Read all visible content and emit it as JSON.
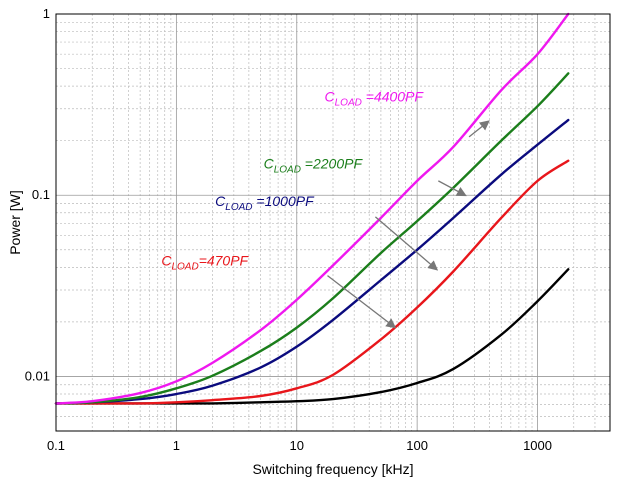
{
  "chart_data": {
    "type": "line",
    "title": "",
    "xlabel": "Switching frequency [kHz]",
    "ylabel": "Power [W]",
    "x_scale": "log",
    "y_scale": "log",
    "xlim": [
      0.1,
      4000
    ],
    "ylim": [
      0.005,
      1
    ],
    "grid": true,
    "x_ticks": [
      "0.1",
      "1",
      "10",
      "100",
      "1000"
    ],
    "y_ticks": [
      "0.01",
      "0.1",
      "1"
    ],
    "x": [
      0.1,
      0.2,
      0.5,
      1,
      2,
      5,
      10,
      20,
      50,
      100,
      200,
      500,
      1000,
      1800
    ],
    "series": [
      {
        "name": "",
        "color": "#000000",
        "values": [
          0.0071,
          0.0071,
          0.0071,
          0.0071,
          0.0071,
          0.0072,
          0.0073,
          0.0075,
          0.0082,
          0.0092,
          0.011,
          0.017,
          0.026,
          0.039
        ]
      },
      {
        "name": "C_LOAD=470PF",
        "label_main": "C",
        "label_sub": "LOAD",
        "label_tail": "=470PF",
        "color": "#e8161b",
        "values": [
          0.0071,
          0.0071,
          0.0071,
          0.0072,
          0.0074,
          0.0078,
          0.0086,
          0.0102,
          0.016,
          0.024,
          0.038,
          0.075,
          0.12,
          0.155
        ]
      },
      {
        "name": "C_LOAD =1000PF",
        "label_main": "C",
        "label_sub": "LOAD",
        "label_tail": " =1000PF",
        "color": "#0b0b7e",
        "values": [
          0.0071,
          0.0072,
          0.0075,
          0.008,
          0.0089,
          0.0112,
          0.0146,
          0.0205,
          0.034,
          0.05,
          0.075,
          0.13,
          0.19,
          0.26
        ]
      },
      {
        "name": "C_LOAD =2200PF",
        "label_main": "C",
        "label_sub": "LOAD",
        "label_tail": " =2200PF",
        "color": "#1b7e1b",
        "values": [
          0.0071,
          0.0072,
          0.0077,
          0.0086,
          0.0101,
          0.0138,
          0.0186,
          0.027,
          0.048,
          0.072,
          0.11,
          0.2,
          0.31,
          0.47
        ]
      },
      {
        "name": "C_LOAD =4400PF",
        "label_main": "C",
        "label_sub": "LOAD",
        "label_tail": " =4400PF",
        "color": "#ef18ef",
        "values": [
          0.0071,
          0.0073,
          0.0081,
          0.0094,
          0.0119,
          0.018,
          0.0265,
          0.041,
          0.075,
          0.12,
          0.185,
          0.38,
          0.6,
          1.0
        ]
      }
    ],
    "annotations": [
      {
        "series": 4,
        "label_at": [
          17,
          0.33
        ],
        "arrow_from": [
          270,
          0.21
        ],
        "arrow_to": [
          390,
          0.255
        ]
      },
      {
        "series": 3,
        "label_at": [
          5.3,
          0.14
        ],
        "arrow_from": [
          150,
          0.12
        ],
        "arrow_to": [
          250,
          0.1
        ]
      },
      {
        "series": 2,
        "label_at": [
          2.1,
          0.087
        ],
        "arrow_from": [
          45,
          0.076
        ],
        "arrow_to": [
          145,
          0.039
        ]
      },
      {
        "series": 1,
        "label_at": [
          0.75,
          0.041
        ],
        "arrow_from": [
          18,
          0.036
        ],
        "arrow_to": [
          65,
          0.0187
        ]
      }
    ]
  }
}
